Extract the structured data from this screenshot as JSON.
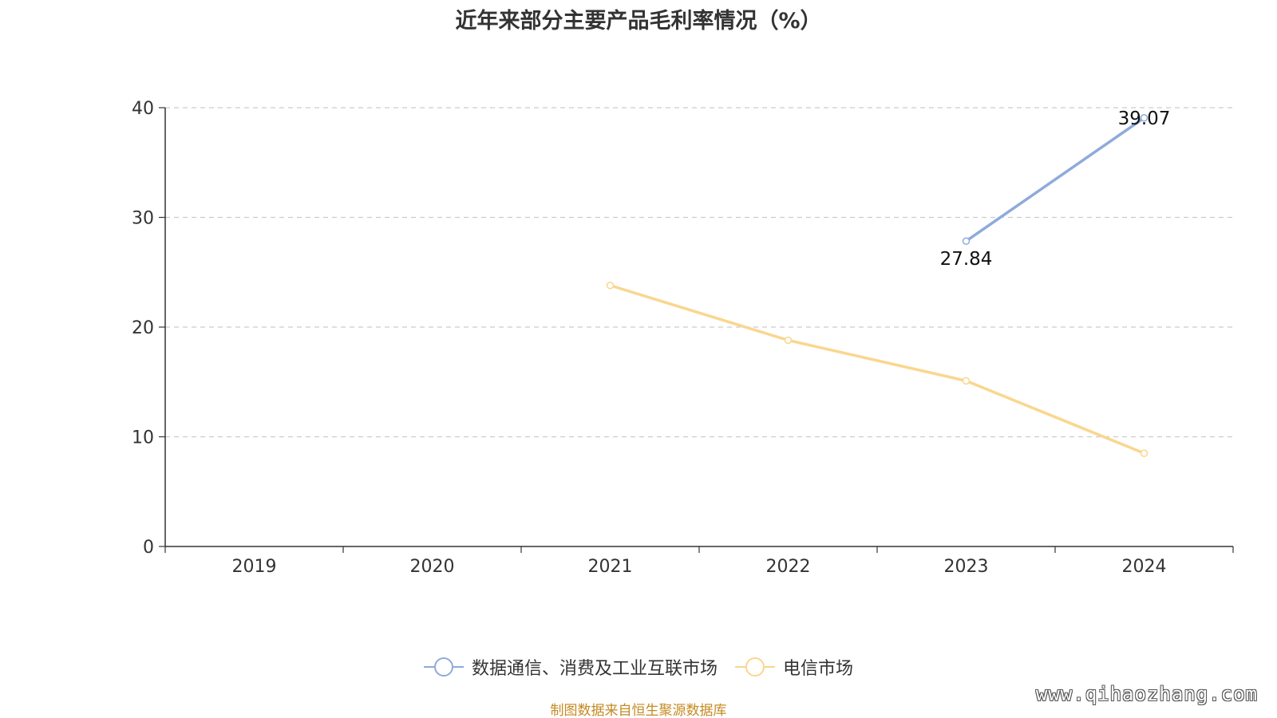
{
  "chart_data": {
    "type": "line",
    "title": "近年来部分主要产品毛利率情况（%）",
    "categories": [
      "2019",
      "2020",
      "2021",
      "2022",
      "2023",
      "2024"
    ],
    "ylim": [
      0,
      40
    ],
    "yticks": [
      0,
      10,
      20,
      30,
      40
    ],
    "grid": true,
    "legend_position": "bottom",
    "series": [
      {
        "name": "数据通信、消费及工业互联市场",
        "color": "#8faadc",
        "values": [
          null,
          null,
          null,
          null,
          27.84,
          39.07
        ],
        "data_labels": [
          null,
          null,
          null,
          null,
          "27.84",
          "39.07"
        ]
      },
      {
        "name": "电信市场",
        "color": "#fad68e",
        "values": [
          null,
          null,
          23.8,
          18.8,
          15.1,
          8.5
        ],
        "data_labels": [
          null,
          null,
          null,
          null,
          null,
          null
        ]
      }
    ]
  },
  "source_note": "制图数据来自恒生聚源数据库",
  "watermark": "www.qihaozhang.com"
}
